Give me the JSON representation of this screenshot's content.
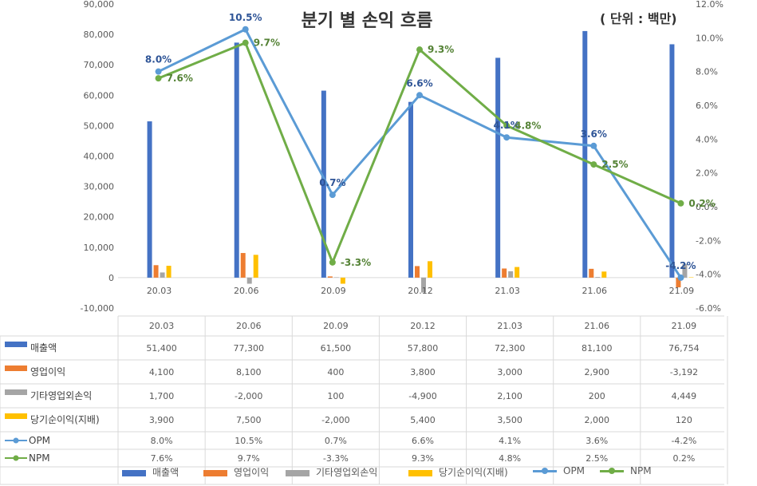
{
  "chart_data": {
    "type": "bar+line",
    "title": "분기 별 손익 흐름",
    "unit": "( 단위 : 백만)",
    "categories": [
      "20.03",
      "20.06",
      "20.09",
      "20.12",
      "21.03",
      "21.06",
      "21.09"
    ],
    "series": [
      {
        "name": "매출액",
        "type": "bar",
        "axis": "left",
        "color": "#4472C4",
        "values": [
          51400,
          77300,
          61500,
          57800,
          72300,
          81100,
          76754
        ],
        "labels": [
          "51,400",
          "77,300",
          "61,500",
          "57,800",
          "72,300",
          "81,100",
          "76,754"
        ]
      },
      {
        "name": "영업이익",
        "type": "bar",
        "axis": "left",
        "color": "#ED7D31",
        "values": [
          4100,
          8100,
          400,
          3800,
          3000,
          2900,
          -3192
        ],
        "labels": [
          "4,100",
          "8,100",
          "400",
          "3,800",
          "3,000",
          "2,900",
          "-3,192"
        ]
      },
      {
        "name": "기타영업외손익",
        "type": "bar",
        "axis": "left",
        "color": "#A5A5A5",
        "values": [
          1700,
          -2000,
          100,
          -4900,
          2100,
          200,
          4449
        ],
        "labels": [
          "1,700",
          "-2,000",
          "100",
          "-4,900",
          "2,100",
          "200",
          "4,449"
        ]
      },
      {
        "name": "당기순이익(지배)",
        "type": "bar",
        "axis": "left",
        "color": "#FFC000",
        "values": [
          3900,
          7500,
          -2000,
          5400,
          3500,
          2000,
          120
        ],
        "labels": [
          "3,900",
          "7,500",
          "-2,000",
          "5,400",
          "3,500",
          "2,000",
          "120"
        ]
      },
      {
        "name": "OPM",
        "type": "line",
        "axis": "right",
        "color": "#5B9BD5",
        "values": [
          8.0,
          10.5,
          0.7,
          6.6,
          4.1,
          3.6,
          -4.2
        ],
        "labels": [
          "8.0%",
          "10.5%",
          "0.7%",
          "6.6%",
          "4.1%",
          "3.6%",
          "-4.2%"
        ],
        "data_labels": [
          "8.0%",
          "10.5%",
          "0.7%",
          "6.6%",
          "4.1%",
          "3.6%",
          "-4.2%"
        ]
      },
      {
        "name": "NPM",
        "type": "line",
        "axis": "right",
        "color": "#70AD47",
        "values": [
          7.6,
          9.7,
          -3.3,
          9.3,
          4.8,
          2.5,
          0.2
        ],
        "labels": [
          "7.6%",
          "9.7%",
          "-3.3%",
          "9.3%",
          "4.8%",
          "2.5%",
          "0.2%"
        ],
        "data_labels": [
          "7.6%",
          "9.7%",
          "-3.3%",
          "9.3%",
          "4.8%",
          "2.5%",
          "0.2%"
        ]
      }
    ],
    "y_left": {
      "min": -10000,
      "max": 90000,
      "step": 10000,
      "ticks": [
        "-10,000",
        "0",
        "10,000",
        "20,000",
        "30,000",
        "40,000",
        "50,000",
        "60,000",
        "70,000",
        "80,000",
        "90,000"
      ]
    },
    "y_right": {
      "min": -6.0,
      "max": 12.0,
      "step": 2.0,
      "ticks": [
        "-6.0%",
        "-4.0%",
        "-2.0%",
        "0.0%",
        "2.0%",
        "4.0%",
        "6.0%",
        "8.0%",
        "10.0%",
        "12.0%"
      ]
    },
    "data_table": true,
    "legend_position": "bottom",
    "grid": false
  }
}
